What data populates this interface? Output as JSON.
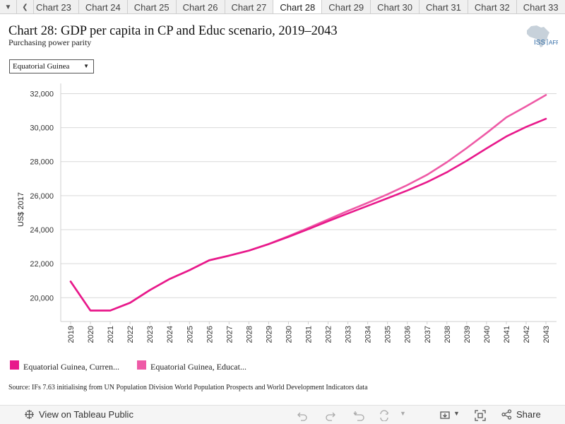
{
  "tabs": {
    "items": [
      "Chart 23",
      "Chart 24",
      "Chart 25",
      "Chart 26",
      "Chart 27",
      "Chart 28",
      "Chart 29",
      "Chart 30",
      "Chart 31",
      "Chart 32",
      "Chart 33"
    ],
    "active_index": 5
  },
  "header": {
    "title": "Chart 28: GDP per capita in CP and Educ scenario, 2019–2043",
    "subtitle": "Purchasing power parity",
    "logo_text": "ISS AFRICA"
  },
  "filter": {
    "selected": "Equatorial Guinea"
  },
  "chart_data": {
    "type": "line",
    "title": "Chart 28: GDP per capita in CP and Educ scenario, 2019–2043",
    "subtitle": "Purchasing power parity",
    "xlabel": "",
    "ylabel": "US$ 2017",
    "x": [
      "2019",
      "2020",
      "2021",
      "2022",
      "2023",
      "2024",
      "2025",
      "2026",
      "2027",
      "2028",
      "2029",
      "2030",
      "2031",
      "2032",
      "2033",
      "2034",
      "2035",
      "2036",
      "2037",
      "2038",
      "2039",
      "2040",
      "2041",
      "2042",
      "2043"
    ],
    "ylim": [
      18600,
      32600
    ],
    "yticks": [
      20000,
      22000,
      24000,
      26000,
      28000,
      30000,
      32000
    ],
    "ytick_labels": [
      "20,000",
      "22,000",
      "24,000",
      "26,000",
      "28,000",
      "30,000",
      "32,000"
    ],
    "grid": true,
    "legend_position": "bottom-left",
    "series": [
      {
        "name": "Equatorial Guinea, Curren...",
        "color": "#e8198b",
        "values": [
          20950,
          19250,
          19250,
          19700,
          20450,
          21100,
          21620,
          22200,
          22470,
          22770,
          23150,
          23580,
          24030,
          24500,
          24950,
          25400,
          25850,
          26300,
          26800,
          27380,
          28050,
          28780,
          29480,
          30040,
          30520
        ]
      },
      {
        "name": "Equatorial Guinea, Educat...",
        "color": "#ee5aa6",
        "values": [
          20950,
          19250,
          19250,
          19700,
          20450,
          21100,
          21620,
          22200,
          22470,
          22770,
          23160,
          23620,
          24100,
          24600,
          25100,
          25580,
          26080,
          26620,
          27230,
          27970,
          28800,
          29680,
          30600,
          31250,
          31920
        ]
      }
    ]
  },
  "source": "Source: IFs 7.63 initialising from UN Population Division World Population Prospects and World Development Indicators data",
  "footer": {
    "view_label": "View on Tableau Public",
    "share_label": "Share"
  }
}
